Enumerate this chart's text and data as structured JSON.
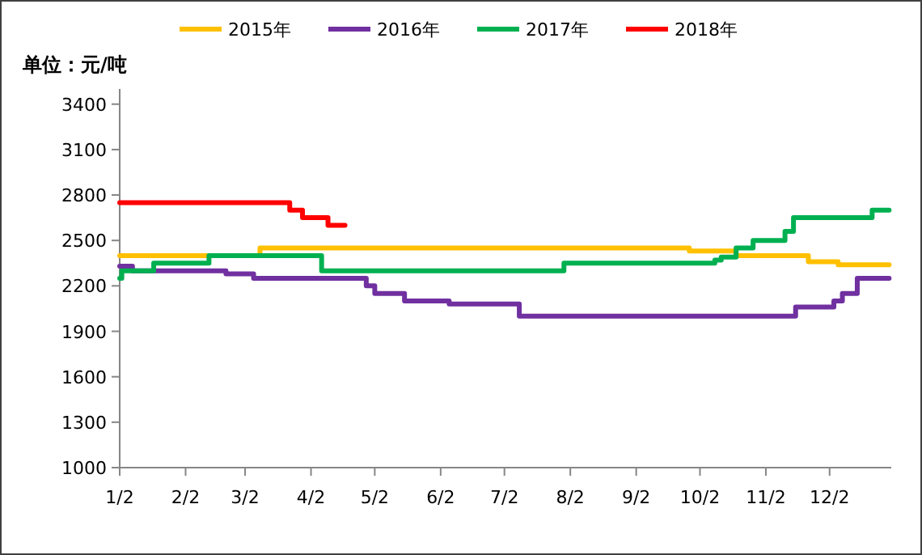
{
  "chart_data": {
    "type": "step",
    "ylabel": "单位：元/吨",
    "legend": "top",
    "grid": false,
    "marker": "none",
    "line_style": "solid",
    "xlim": [
      "--01-02",
      "--12-31"
    ],
    "xticks": [
      {
        "value": "--01-02",
        "label": "1/2"
      },
      {
        "value": "--02-02",
        "label": "2/2"
      },
      {
        "value": "--03-02",
        "label": "3/2"
      },
      {
        "value": "--04-02",
        "label": "4/2"
      },
      {
        "value": "--05-02",
        "label": "5/2"
      },
      {
        "value": "--06-02",
        "label": "6/2"
      },
      {
        "value": "--07-02",
        "label": "7/2"
      },
      {
        "value": "--08-02",
        "label": "8/2"
      },
      {
        "value": "--09-02",
        "label": "9/2"
      },
      {
        "value": "--10-02",
        "label": "10/2"
      },
      {
        "value": "--11-02",
        "label": "11/2"
      },
      {
        "value": "--12-02",
        "label": "12/2"
      }
    ],
    "ylim": [
      1000,
      3500
    ],
    "yticks": [
      1000,
      1300,
      1600,
      1900,
      2200,
      2500,
      2800,
      3100,
      3400
    ],
    "series": [
      {
        "name": "2015年",
        "color": "#ffc000",
        "x": [
          "--01-02",
          "--03-09",
          "--09-27",
          "--10-19",
          "--11-22",
          "--12-06",
          "--12-30"
        ],
        "values": [
          2400,
          2450,
          2430,
          2400,
          2360,
          2340,
          2340
        ]
      },
      {
        "name": "2016年",
        "color": "#7030a0",
        "x": [
          "--01-02",
          "--01-08",
          "--02-21",
          "--03-06",
          "--04-28",
          "--05-02",
          "--05-16",
          "--06-06",
          "--07-09",
          "--11-16",
          "--12-04",
          "--12-08",
          "--12-15",
          "--12-30"
        ],
        "values": [
          2330,
          2300,
          2280,
          2250,
          2200,
          2150,
          2100,
          2080,
          2000,
          2060,
          2100,
          2150,
          2250,
          2250
        ]
      },
      {
        "name": "2017年",
        "color": "#00b050",
        "x": [
          "--01-02",
          "--01-03",
          "--01-18",
          "--02-13",
          "--04-07",
          "--07-30",
          "--10-09",
          "--10-12",
          "--10-19",
          "--10-27",
          "--11-11",
          "--11-15",
          "--12-22",
          "--12-30"
        ],
        "values": [
          2250,
          2300,
          2350,
          2400,
          2300,
          2350,
          2370,
          2390,
          2450,
          2500,
          2560,
          2650,
          2700,
          2700
        ]
      },
      {
        "name": "2018年",
        "color": "#ff0000",
        "x": [
          "--01-02",
          "--03-23",
          "--03-29",
          "--04-10",
          "--04-18"
        ],
        "values": [
          2750,
          2700,
          2650,
          2600,
          2600
        ]
      }
    ]
  }
}
